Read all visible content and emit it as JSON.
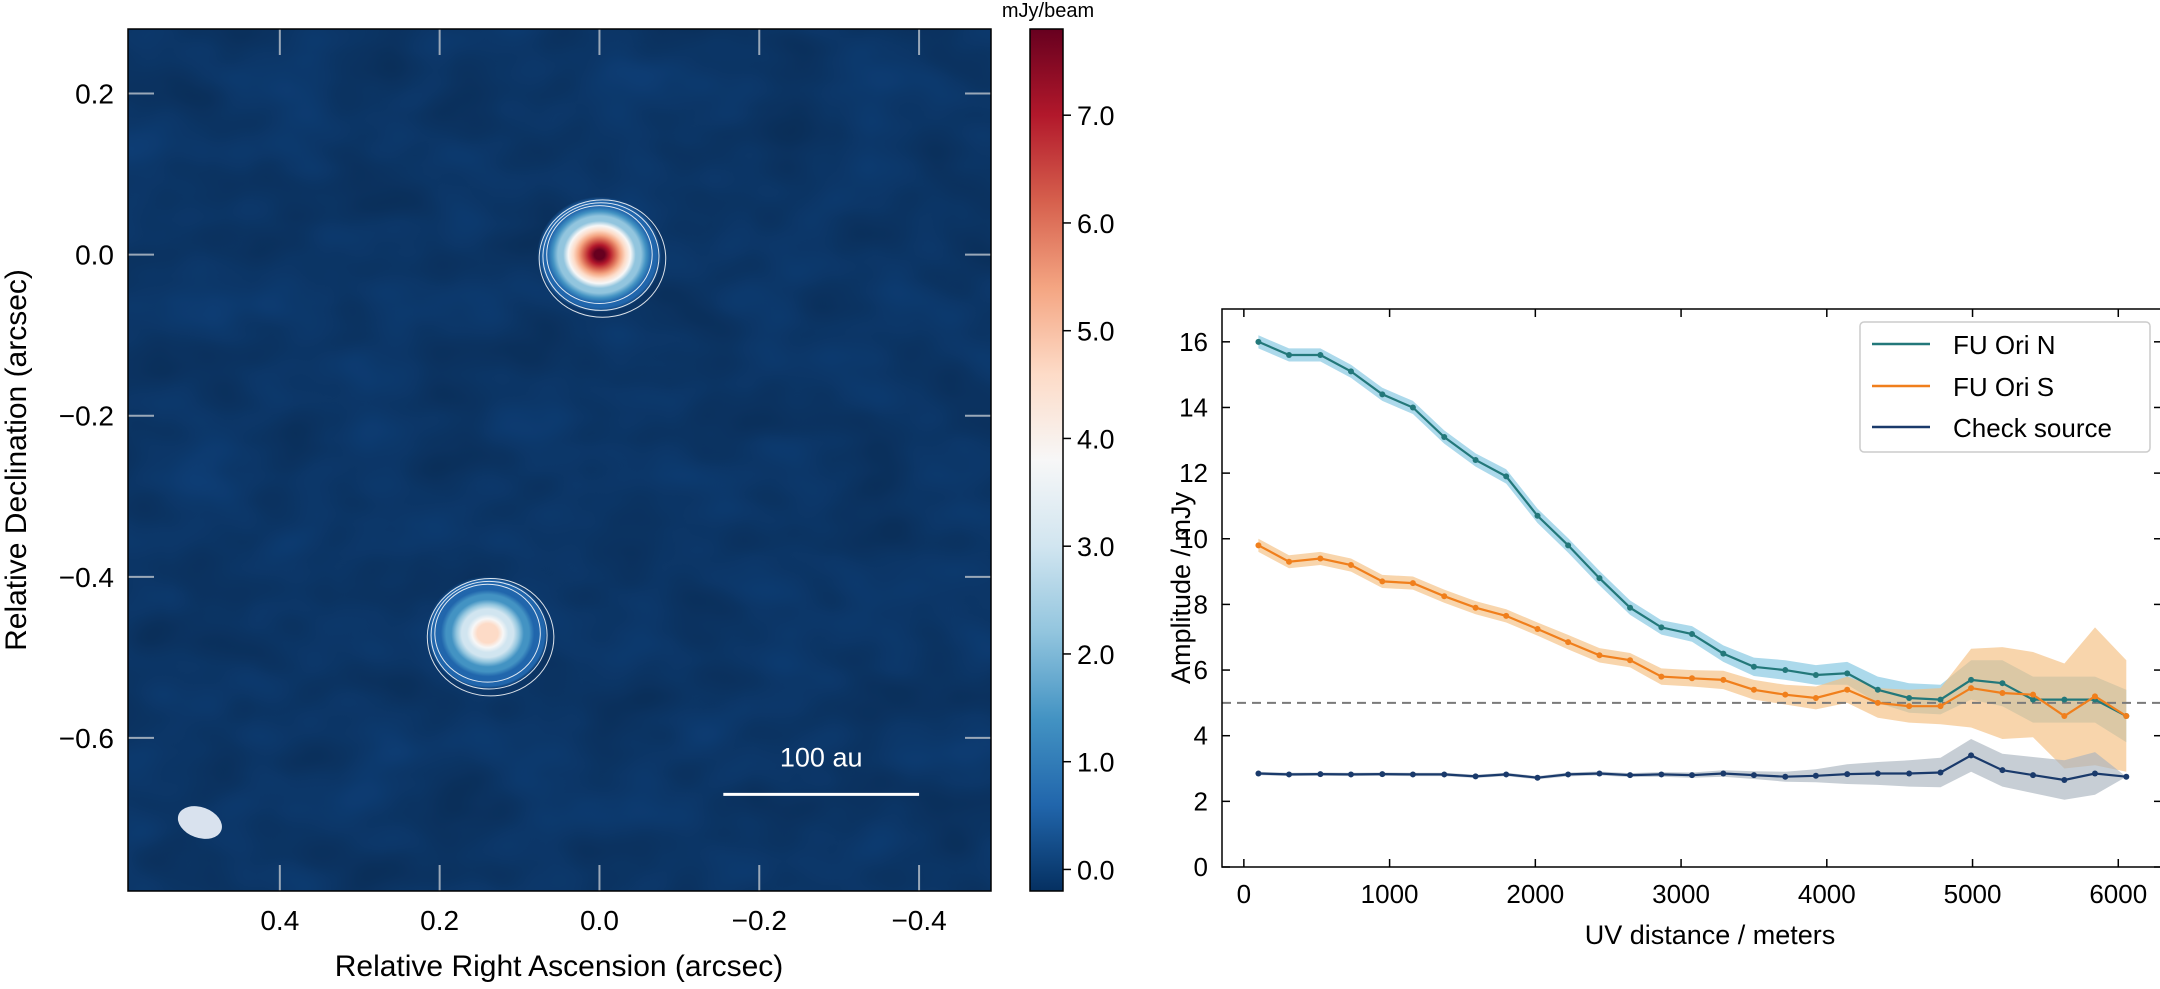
{
  "chart_data": [
    {
      "type": "heatmap",
      "xlabel": "Relative Right Ascension (arcsec)",
      "ylabel": "Relative Declination (arcsec)",
      "xlim": [
        0.59,
        -0.49
      ],
      "ylim": [
        -0.79,
        0.28
      ],
      "xticks": [
        0.4,
        0.2,
        0.0,
        -0.2,
        -0.4
      ],
      "xtick_labels": [
        "0.4",
        "0.2",
        "0.0",
        "−0.2",
        "−0.4"
      ],
      "yticks": [
        0.2,
        0.0,
        -0.2,
        -0.4,
        -0.6
      ],
      "ytick_labels": [
        "0.2",
        "0.0",
        "−0.2",
        "−0.4",
        "−0.6"
      ],
      "colorbar": {
        "label": "mJy/beam",
        "range": [
          -0.2,
          7.8
        ],
        "ticks": [
          0.0,
          1.0,
          2.0,
          3.0,
          4.0,
          5.0,
          6.0,
          7.0
        ],
        "tick_labels": [
          "0.0",
          "1.0",
          "2.0",
          "3.0",
          "4.0",
          "5.0",
          "6.0",
          "7.0"
        ],
        "colormap": "RdBu_r",
        "stops": [
          "#053061",
          "#2166ac",
          "#4393c3",
          "#92c5de",
          "#d1e5f0",
          "#f7f7f7",
          "#fddbc7",
          "#f4a582",
          "#d6604d",
          "#b2182b",
          "#67001f"
        ]
      },
      "sources": [
        {
          "ra": 0.0,
          "dec": 0.0,
          "peak": 7.7
        },
        {
          "ra": 0.14,
          "dec": -0.47,
          "peak": 4.6
        }
      ],
      "beam": {
        "ra": 0.5,
        "dec": -0.705,
        "major": 0.06,
        "minor": 0.04
      },
      "scalebar": {
        "label": "100 au",
        "ra_start": -0.155,
        "ra_end": -0.4,
        "dec": -0.67
      },
      "colors": {
        "background": "#0e3f78",
        "contour": "#ffffff"
      }
    },
    {
      "type": "line",
      "xlabel": "UV distance / meters",
      "ylabel": "Amplitude / mJy",
      "xlim": [
        -150,
        6300
      ],
      "ylim": [
        0,
        17
      ],
      "xticks": [
        0,
        1000,
        2000,
        3000,
        4000,
        5000,
        6000
      ],
      "yticks": [
        0,
        2,
        4,
        6,
        8,
        10,
        12,
        14,
        16
      ],
      "reference_line": 5.0,
      "legend_position": "top-right",
      "x": [
        100,
        310,
        525,
        735,
        950,
        1160,
        1375,
        1590,
        1800,
        2015,
        2225,
        2440,
        2650,
        2865,
        3075,
        3290,
        3500,
        3715,
        3925,
        4140,
        4350,
        4565,
        4780,
        4990,
        5205,
        5415,
        5630,
        5840,
        6055
      ],
      "series": [
        {
          "name": "FU Ori N",
          "color": "#23787a",
          "band_color": "#7fc4e0",
          "values": [
            16.0,
            15.6,
            15.6,
            15.1,
            14.4,
            14.0,
            13.1,
            12.4,
            11.9,
            10.7,
            9.8,
            8.8,
            7.9,
            7.3,
            7.1,
            6.5,
            6.1,
            6.0,
            5.85,
            5.9,
            5.4,
            5.15,
            5.1,
            5.7,
            5.6,
            5.1,
            5.1,
            5.1,
            4.6
          ],
          "err": [
            0.2,
            0.2,
            0.2,
            0.2,
            0.2,
            0.2,
            0.2,
            0.2,
            0.22,
            0.22,
            0.22,
            0.22,
            0.22,
            0.22,
            0.24,
            0.25,
            0.28,
            0.3,
            0.3,
            0.35,
            0.4,
            0.45,
            0.45,
            0.6,
            0.7,
            0.7,
            0.7,
            0.7,
            0.8
          ]
        },
        {
          "name": "FU Ori S",
          "color": "#f07f1c",
          "band_color": "#f5be80",
          "values": [
            9.8,
            9.3,
            9.4,
            9.2,
            8.7,
            8.65,
            8.25,
            7.9,
            7.65,
            7.25,
            6.85,
            6.45,
            6.3,
            5.8,
            5.75,
            5.7,
            5.4,
            5.25,
            5.15,
            5.4,
            5.0,
            4.9,
            4.9,
            5.45,
            5.3,
            5.25,
            4.6,
            5.2,
            4.6
          ],
          "err": [
            0.2,
            0.2,
            0.2,
            0.2,
            0.2,
            0.2,
            0.2,
            0.2,
            0.2,
            0.2,
            0.22,
            0.22,
            0.22,
            0.25,
            0.25,
            0.28,
            0.3,
            0.3,
            0.35,
            0.4,
            0.45,
            0.5,
            0.55,
            1.2,
            1.4,
            1.3,
            1.6,
            2.1,
            1.7
          ]
        },
        {
          "name": "Check source",
          "color": "#1a3a6b",
          "band_color": "#a9b4bf",
          "values": [
            2.85,
            2.82,
            2.83,
            2.82,
            2.83,
            2.82,
            2.82,
            2.76,
            2.82,
            2.72,
            2.82,
            2.85,
            2.8,
            2.82,
            2.8,
            2.85,
            2.8,
            2.75,
            2.78,
            2.83,
            2.85,
            2.85,
            2.88,
            3.4,
            2.95,
            2.8,
            2.65,
            2.85,
            2.75
          ],
          "err": [
            0.05,
            0.05,
            0.05,
            0.05,
            0.05,
            0.05,
            0.05,
            0.05,
            0.05,
            0.05,
            0.06,
            0.06,
            0.06,
            0.07,
            0.08,
            0.1,
            0.12,
            0.15,
            0.2,
            0.3,
            0.35,
            0.4,
            0.45,
            0.5,
            0.5,
            0.55,
            0.6,
            0.65,
            0.0
          ]
        }
      ]
    }
  ]
}
